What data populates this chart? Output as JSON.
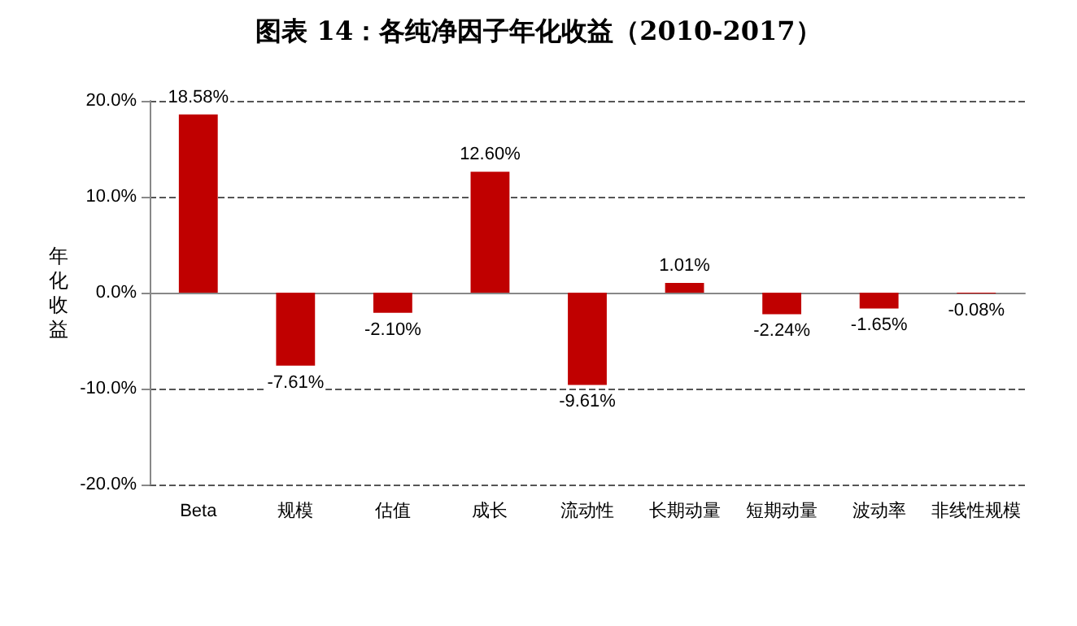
{
  "chart_data": {
    "type": "bar",
    "title": "图表 14：各纯净因子年化收益（2010-2017）",
    "ylabel": "年化收益",
    "categories": [
      "Beta",
      "规模",
      "估值",
      "成长",
      "流动性",
      "长期动量",
      "短期动量",
      "波动率",
      "非线性规模"
    ],
    "values": [
      18.58,
      -7.61,
      -2.1,
      12.6,
      -9.61,
      1.01,
      -2.24,
      -1.65,
      -0.08
    ],
    "value_labels": [
      "18.58%",
      "-7.61%",
      "-2.10%",
      "12.60%",
      "-9.61%",
      "1.01%",
      "-2.24%",
      "-1.65%",
      "-0.08%"
    ],
    "color": "#c00000",
    "ylim": [
      -20,
      20
    ],
    "yticks": [
      {
        "value": -20,
        "label": "-20.0%"
      },
      {
        "value": -10,
        "label": "-10.0%"
      },
      {
        "value": 0,
        "label": "0.0%"
      },
      {
        "value": 10,
        "label": "10.0%"
      },
      {
        "value": 20,
        "label": "20.0%"
      }
    ],
    "grid": "y"
  }
}
